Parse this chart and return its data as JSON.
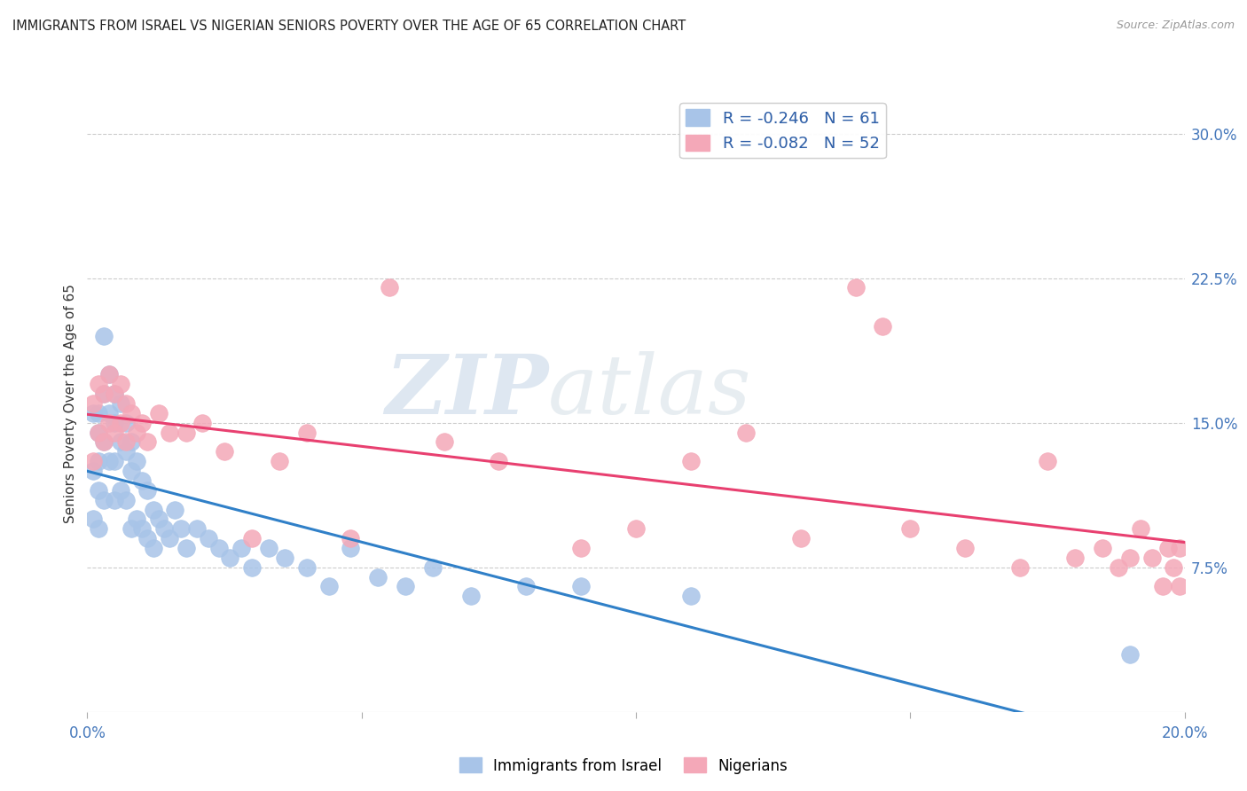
{
  "title": "IMMIGRANTS FROM ISRAEL VS NIGERIAN SENIORS POVERTY OVER THE AGE OF 65 CORRELATION CHART",
  "source": "Source: ZipAtlas.com",
  "ylabel": "Seniors Poverty Over the Age of 65",
  "xlim": [
    0.0,
    0.2
  ],
  "ylim": [
    0.0,
    0.32
  ],
  "yticks_right": [
    0.075,
    0.15,
    0.225,
    0.3
  ],
  "yticks_right_labels": [
    "7.5%",
    "15.0%",
    "22.5%",
    "30.0%"
  ],
  "legend_israel": "R = -0.246   N = 61",
  "legend_nigeria": "R = -0.082   N = 52",
  "legend_label_israel": "Immigrants from Israel",
  "legend_label_nigeria": "Nigerians",
  "color_israel": "#a8c4e8",
  "color_nigeria": "#f4a8b8",
  "color_trendline_israel": "#3080c8",
  "color_trendline_nigeria": "#e84070",
  "watermark_zip": "ZIP",
  "watermark_atlas": "atlas",
  "background_color": "#ffffff",
  "israel_x": [
    0.001,
    0.001,
    0.001,
    0.002,
    0.002,
    0.002,
    0.002,
    0.002,
    0.003,
    0.003,
    0.003,
    0.003,
    0.004,
    0.004,
    0.004,
    0.005,
    0.005,
    0.005,
    0.005,
    0.006,
    0.006,
    0.006,
    0.007,
    0.007,
    0.007,
    0.008,
    0.008,
    0.008,
    0.009,
    0.009,
    0.01,
    0.01,
    0.011,
    0.011,
    0.012,
    0.012,
    0.013,
    0.014,
    0.015,
    0.016,
    0.017,
    0.018,
    0.02,
    0.022,
    0.024,
    0.026,
    0.028,
    0.03,
    0.033,
    0.036,
    0.04,
    0.044,
    0.048,
    0.053,
    0.058,
    0.063,
    0.07,
    0.08,
    0.09,
    0.11,
    0.19
  ],
  "israel_y": [
    0.155,
    0.125,
    0.1,
    0.155,
    0.145,
    0.13,
    0.115,
    0.095,
    0.195,
    0.165,
    0.14,
    0.11,
    0.175,
    0.155,
    0.13,
    0.165,
    0.15,
    0.13,
    0.11,
    0.16,
    0.14,
    0.115,
    0.15,
    0.135,
    0.11,
    0.14,
    0.125,
    0.095,
    0.13,
    0.1,
    0.12,
    0.095,
    0.115,
    0.09,
    0.105,
    0.085,
    0.1,
    0.095,
    0.09,
    0.105,
    0.095,
    0.085,
    0.095,
    0.09,
    0.085,
    0.08,
    0.085,
    0.075,
    0.085,
    0.08,
    0.075,
    0.065,
    0.085,
    0.07,
    0.065,
    0.075,
    0.06,
    0.065,
    0.065,
    0.06,
    0.03
  ],
  "nigeria_x": [
    0.001,
    0.001,
    0.002,
    0.002,
    0.003,
    0.003,
    0.004,
    0.004,
    0.005,
    0.005,
    0.006,
    0.006,
    0.007,
    0.007,
    0.008,
    0.009,
    0.01,
    0.011,
    0.013,
    0.015,
    0.018,
    0.021,
    0.025,
    0.03,
    0.035,
    0.04,
    0.048,
    0.055,
    0.065,
    0.075,
    0.09,
    0.1,
    0.11,
    0.12,
    0.13,
    0.14,
    0.145,
    0.15,
    0.16,
    0.17,
    0.175,
    0.18,
    0.185,
    0.188,
    0.19,
    0.192,
    0.194,
    0.196,
    0.197,
    0.198,
    0.199,
    0.199
  ],
  "nigeria_y": [
    0.16,
    0.13,
    0.17,
    0.145,
    0.165,
    0.14,
    0.175,
    0.15,
    0.165,
    0.145,
    0.17,
    0.15,
    0.16,
    0.14,
    0.155,
    0.145,
    0.15,
    0.14,
    0.155,
    0.145,
    0.145,
    0.15,
    0.135,
    0.09,
    0.13,
    0.145,
    0.09,
    0.22,
    0.14,
    0.13,
    0.085,
    0.095,
    0.13,
    0.145,
    0.09,
    0.22,
    0.2,
    0.095,
    0.085,
    0.075,
    0.13,
    0.08,
    0.085,
    0.075,
    0.08,
    0.095,
    0.08,
    0.065,
    0.085,
    0.075,
    0.085,
    0.065
  ]
}
